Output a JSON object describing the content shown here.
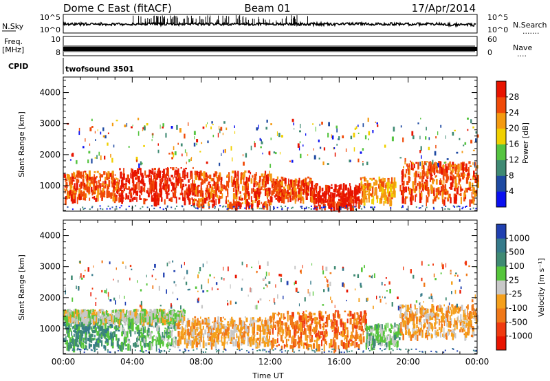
{
  "header": {
    "station": "Dome C East (fitACF)",
    "beam": "Beam 01",
    "date": "17/Apr/2014"
  },
  "strip_panels": {
    "nsky": {
      "left_label": "N.Sky",
      "right_label": "N.Search",
      "left_ticks": [
        "10^5",
        "10^0"
      ],
      "right_ticks": [
        "10^5",
        "10^0"
      ],
      "right_dots": "......."
    },
    "freq": {
      "left_label_1": "Freq.",
      "left_label_2": "[MHz]",
      "right_label": "Nave",
      "left_ticks": [
        "10",
        "8"
      ],
      "right_ticks": [
        "60",
        "0"
      ],
      "right_dots": "...."
    },
    "cpid": {
      "left_label": "CPID",
      "program": "twofsound 3501"
    }
  },
  "chart_data": [
    {
      "type": "heatmap",
      "name": "Power",
      "ylabel": "Slant Range [km]",
      "xlabel": "",
      "xlim": [
        0,
        24
      ],
      "ylim": [
        180,
        4500
      ],
      "yticks": [
        "1000",
        "2000",
        "3000",
        "4000"
      ],
      "colorbar_label": "Power [dB]",
      "colorbar_ticks": [
        "4",
        "8",
        "12",
        "16",
        "20",
        "24",
        "28"
      ],
      "colors": [
        "#0a10f0",
        "#1e4aa2",
        "#3f8a73",
        "#55c440",
        "#f0d000",
        "#f49a10",
        "#f04a08",
        "#e81400"
      ],
      "range_bands": [
        {
          "start": 0,
          "end": 3.2,
          "low": 600,
          "high": 1500,
          "level": 6
        },
        {
          "start": 3.2,
          "end": 7.5,
          "low": 550,
          "high": 1600,
          "level": 7
        },
        {
          "start": 7.5,
          "end": 12,
          "low": 400,
          "high": 1500,
          "level": 6
        },
        {
          "start": 12,
          "end": 14.5,
          "low": 600,
          "high": 1300,
          "level": 6
        },
        {
          "start": 14.5,
          "end": 17.2,
          "low": 350,
          "high": 1100,
          "level": 7
        },
        {
          "start": 17.2,
          "end": 19.2,
          "low": 500,
          "high": 1300,
          "level": 5
        },
        {
          "start": 19.5,
          "end": 24,
          "low": 550,
          "high": 1800,
          "level": 6
        }
      ]
    },
    {
      "type": "heatmap",
      "name": "Velocity",
      "ylabel": "Slant Range [km]",
      "xlabel": "Time UT",
      "xlim": [
        0,
        24
      ],
      "ylim": [
        180,
        4500
      ],
      "yticks": [
        "1000",
        "2000",
        "3000",
        "4000"
      ],
      "xticks": [
        "00:00",
        "04:00",
        "08:00",
        "12:00",
        "16:00",
        "20:00",
        "00:00"
      ],
      "colorbar_label": "Velocity [m s⁻¹]",
      "colorbar_ticks": [
        "1000",
        "500",
        "100",
        "25",
        "-25",
        "-100",
        "-500",
        "-1000"
      ],
      "colors": [
        "#2040b0",
        "#357a8a",
        "#3f8a73",
        "#56c53b",
        "#c8c8c8",
        "#f5a01c",
        "#f07818",
        "#f03a10",
        "#e81400"
      ],
      "range_bands": [
        {
          "start": 0,
          "end": 3.2,
          "low": 450,
          "high": 1400,
          "level": 2
        },
        {
          "start": 3.2,
          "end": 6.5,
          "low": 450,
          "high": 1500,
          "level": 3
        },
        {
          "start": 0,
          "end": 7,
          "low": 1300,
          "high": 1650,
          "level": 4
        },
        {
          "start": 6.5,
          "end": 12,
          "low": 550,
          "high": 1400,
          "level": 5
        },
        {
          "start": 12,
          "end": 17.5,
          "low": 450,
          "high": 1600,
          "level": 6
        },
        {
          "start": 17.5,
          "end": 19.5,
          "low": 500,
          "high": 1200,
          "level": 3
        },
        {
          "start": 19.5,
          "end": 24,
          "low": 800,
          "high": 1800,
          "level": 5
        }
      ]
    }
  ]
}
